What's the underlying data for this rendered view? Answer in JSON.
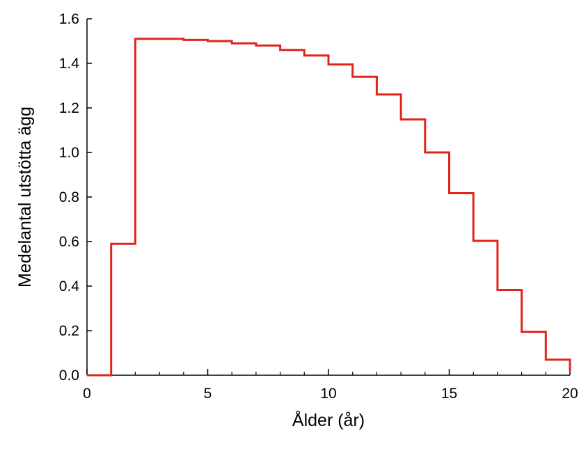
{
  "chart_data": {
    "type": "line",
    "step": "post",
    "title": "",
    "xlabel": "Ålder (år)",
    "ylabel": "Medelantal utstötta ägg",
    "xlim": [
      0,
      20
    ],
    "ylim": [
      0,
      1.6
    ],
    "x_ticks": [
      0,
      5,
      10,
      15,
      20
    ],
    "x_tick_labels": [
      "0",
      "5",
      "10",
      "15",
      "20"
    ],
    "y_ticks": [
      0,
      0.2,
      0.4,
      0.6,
      0.8,
      1.0,
      1.2,
      1.4,
      1.6
    ],
    "y_tick_labels": [
      "0.0",
      "0.2",
      "0.4",
      "0.6",
      "0.8",
      "1.0",
      "1.2",
      "1.4",
      "1.6"
    ],
    "grid": false,
    "legend": "none",
    "series": [
      {
        "color": "#e0251b",
        "x": [
          0,
          1,
          2,
          3,
          4,
          5,
          6,
          7,
          8,
          9,
          10,
          11,
          12,
          13,
          14,
          15,
          16,
          17,
          18,
          19,
          20
        ],
        "y": [
          0,
          0.59,
          1.51,
          1.51,
          1.505,
          1.5,
          1.49,
          1.48,
          1.46,
          1.435,
          1.395,
          1.34,
          1.26,
          1.148,
          1.0,
          0.817,
          0.603,
          0.383,
          0.195,
          0.07,
          0.02
        ]
      }
    ]
  }
}
